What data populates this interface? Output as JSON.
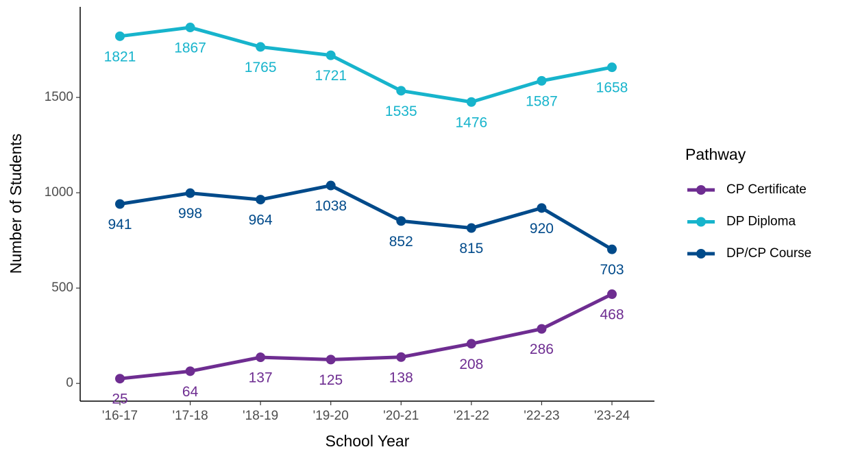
{
  "chart_data": {
    "type": "line",
    "x_label": "School Year",
    "y_label": "Number of Students",
    "categories": [
      "'16-17",
      "'17-18",
      "'18-19",
      "'19-20",
      "'20-21",
      "'21-22",
      "'22-23",
      "'23-24"
    ],
    "series": [
      {
        "name": "CP Certificate",
        "color": "#6e2d91",
        "values": [
          25,
          64,
          137,
          125,
          138,
          208,
          286,
          468
        ]
      },
      {
        "name": "DP Diploma",
        "color": "#17b4cc",
        "values": [
          1821,
          1867,
          1765,
          1721,
          1535,
          1476,
          1587,
          1658
        ]
      },
      {
        "name": "DP/CP Course",
        "color": "#004a8a",
        "values": [
          941,
          998,
          964,
          1038,
          852,
          815,
          920,
          703
        ]
      }
    ],
    "ylim": [
      -93,
      1975
    ],
    "yticks": [
      0,
      500,
      1000,
      1500
    ],
    "legend_title": "Pathway",
    "legend_position": "right",
    "grid": false
  }
}
